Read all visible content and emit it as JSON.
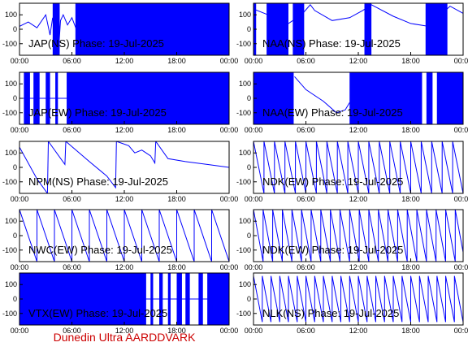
{
  "credit": {
    "text": "Dunedin Ultra AARDDVARK",
    "color": "#cc0000"
  },
  "colors": {
    "trace": "#0000ff",
    "frame": "#000000",
    "text": "#000000"
  },
  "chart_data": [
    {
      "type": "line",
      "title": "JAP(NS) Phase: 19-Jul-2025",
      "x_ticks": [
        "00:00",
        "06:00",
        "12:00",
        "18:00",
        "00:00"
      ],
      "y_ticks": [
        100,
        0,
        -100
      ],
      "xlim": [
        0,
        24
      ],
      "ylim": [
        -180,
        180
      ],
      "x": [
        0,
        1,
        2,
        3,
        3.5,
        3.8,
        4.5,
        4.7,
        5,
        5.5,
        6,
        6.5,
        24
      ],
      "y": [
        20,
        50,
        10,
        100,
        -40,
        80,
        -120,
        60,
        100,
        30,
        80,
        0,
        0
      ],
      "filled": [
        [
          3.8,
          4.6
        ],
        [
          6.4,
          24
        ]
      ]
    },
    {
      "type": "line",
      "title": "NAA(NS) Phase: 19-Jul-2025",
      "x_ticks": [
        "00:00",
        "06:00",
        "12:00",
        "18:00",
        "00:00"
      ],
      "y_ticks": [
        100,
        0,
        -100
      ],
      "xlim": [
        0,
        24
      ],
      "ylim": [
        -180,
        180
      ],
      "x": [
        0,
        2.5,
        4,
        5.5,
        6.5,
        7,
        9,
        11,
        12.5,
        13.5,
        16,
        18,
        20,
        22.5,
        24
      ],
      "y": [
        140,
        80,
        40,
        100,
        170,
        130,
        60,
        80,
        130,
        170,
        90,
        40,
        20,
        160,
        110
      ],
      "filled": [
        [
          0,
          0.3
        ],
        [
          1.5,
          4
        ],
        [
          4.5,
          5.8
        ],
        [
          12.7,
          13.5
        ],
        [
          19.7,
          22.2
        ]
      ]
    },
    {
      "type": "line",
      "title": "JAP(EW) Phase: 19-Jul-2025",
      "x_ticks": [
        "00:00",
        "06:00",
        "12:00",
        "18:00",
        "00:00"
      ],
      "y_ticks": [
        100,
        0,
        -100
      ],
      "xlim": [
        0,
        24
      ],
      "ylim": [
        -180,
        180
      ],
      "x": [
        0,
        24
      ],
      "y": [
        0,
        0
      ],
      "filled": [
        [
          0.5,
          1.2
        ],
        [
          1.6,
          2.3
        ],
        [
          3,
          3.5
        ],
        [
          4.1,
          4.4
        ],
        [
          5.4,
          24
        ]
      ]
    },
    {
      "type": "line",
      "title": "NAA(EW) Phase: 19-Jul-2025",
      "x_ticks": [
        "00:00",
        "06:00",
        "12:00",
        "18:00",
        "00:00"
      ],
      "y_ticks": [
        100,
        0,
        -100
      ],
      "xlim": [
        0,
        24
      ],
      "ylim": [
        -180,
        180
      ],
      "x": [
        4.7,
        6,
        8,
        9.5,
        10.5,
        11
      ],
      "y": [
        150,
        60,
        -20,
        -100,
        -80,
        -30
      ],
      "filled": [
        [
          0,
          4.6
        ],
        [
          11,
          19.3
        ],
        [
          19.8,
          20.5
        ],
        [
          21,
          24
        ]
      ]
    },
    {
      "type": "line",
      "title": "NPM(NS) Phase: 19-Jul-2025",
      "x_ticks": [
        "00:00",
        "06:00",
        "12:00",
        "18:00",
        "00:00"
      ],
      "y_ticks": [
        100,
        0,
        -100
      ],
      "xlim": [
        0,
        24
      ],
      "ylim": [
        -180,
        180
      ],
      "x": [
        0,
        2,
        3.2,
        3.3,
        5.2,
        5.3,
        8,
        10,
        11,
        11.1,
        12.5,
        13.2,
        14,
        15,
        15.5,
        15.6,
        17,
        19,
        21.5,
        24
      ],
      "y": [
        140,
        -80,
        -180,
        180,
        20,
        180,
        40,
        -60,
        -140,
        180,
        150,
        100,
        120,
        80,
        30,
        180,
        60,
        40,
        20,
        0
      ]
    },
    {
      "type": "line",
      "title": "NDK(EW) Phase: 19-Jul-2025",
      "x_ticks": [
        "00:00",
        "06:00",
        "12:00",
        "18:00",
        "00:00"
      ],
      "y_ticks": [
        100,
        0,
        -100
      ],
      "xlim": [
        0,
        24
      ],
      "ylim": [
        -180,
        180
      ],
      "sawtooth_period": 1.2,
      "x": [
        0,
        24
      ],
      "y": [
        180,
        -180
      ]
    },
    {
      "type": "line",
      "title": "NWC(EW) Phase: 19-Jul-2025",
      "x_ticks": [
        "00:00",
        "06:00",
        "12:00",
        "18:00",
        "00:00"
      ],
      "y_ticks": [
        100,
        0,
        -100
      ],
      "xlim": [
        0,
        24
      ],
      "ylim": [
        -180,
        180
      ],
      "sawtooth_period": 2.0,
      "x": [
        0,
        24
      ],
      "y": [
        180,
        -180
      ]
    },
    {
      "type": "line",
      "title": "NDK(EW) Phase: 19-Jul-2025",
      "x_ticks": [
        "00:00",
        "06:00",
        "12:00",
        "18:00",
        "00:00"
      ],
      "y_ticks": [
        100,
        0,
        -100
      ],
      "xlim": [
        0,
        24
      ],
      "ylim": [
        -180,
        180
      ],
      "sawtooth_period": 1.1,
      "x": [
        0,
        24
      ],
      "y": [
        180,
        -180
      ]
    },
    {
      "type": "line",
      "title": "VTX(EW) Phase: 19-Jul-2025",
      "x_ticks": [
        "00:00",
        "06:00",
        "12:00",
        "18:00",
        "00:00"
      ],
      "y_ticks": [
        100,
        0,
        -100
      ],
      "xlim": [
        0,
        24
      ],
      "ylim": [
        -180,
        180
      ],
      "x": [
        0,
        24
      ],
      "y": [
        0,
        0
      ],
      "filled": [
        [
          0,
          14.5
        ],
        [
          15,
          15.3
        ],
        [
          16,
          16.4
        ],
        [
          17,
          17.3
        ],
        [
          18,
          18.6
        ],
        [
          19,
          19.5
        ],
        [
          20.5,
          21
        ],
        [
          21.5,
          24
        ]
      ]
    },
    {
      "type": "line",
      "title": "NLK(NS) Phase: 19-Jul-2025",
      "x_ticks": [
        "00:00",
        "06:00",
        "12:00",
        "18:00",
        "00:00"
      ],
      "y_ticks": [
        100,
        0,
        -100
      ],
      "xlim": [
        0,
        24
      ],
      "ylim": [
        -180,
        180
      ],
      "sawtooth_period": 1.0,
      "x": [
        0,
        24
      ],
      "y": [
        160,
        -160
      ]
    }
  ]
}
